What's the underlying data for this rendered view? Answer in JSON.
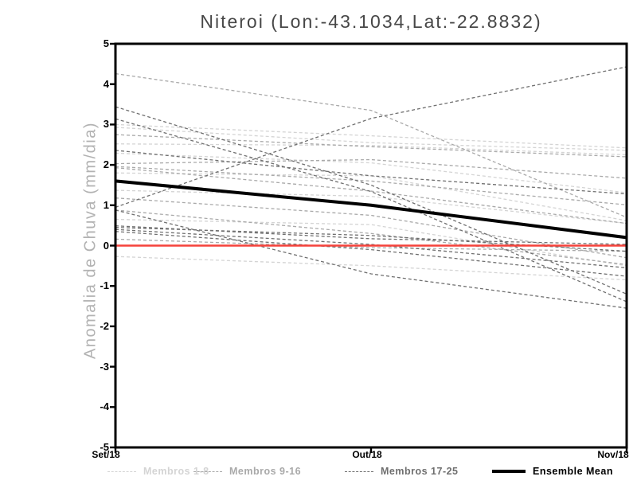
{
  "header": {
    "title": "Niteroi (Lon:-43.1034,Lat:-22.8832)"
  },
  "chart_data": {
    "type": "line",
    "title": "Niteroi (Lon:-43.1034,Lat:-22.8832)",
    "xlabel": "",
    "ylabel": "Anomalia de Chuva (mm/dia)",
    "categories": [
      "Set/18",
      "Out/18",
      "Nov/18"
    ],
    "ylim": [
      -5,
      5
    ],
    "yticks": [
      5,
      4,
      3,
      2,
      1,
      0,
      -1,
      -2,
      -3,
      -4,
      -5
    ],
    "grid": false,
    "legend_position": "bottom",
    "series_groups": [
      {
        "name": "Membros 1-8",
        "color": "#d4d4d4",
        "line_style": "dashed",
        "members": [
          [
            3.0,
            2.72,
            2.42
          ],
          [
            2.93,
            2.55,
            2.36
          ],
          [
            2.52,
            2.48,
            2.25
          ],
          [
            2.29,
            2.05,
            1.31
          ],
          [
            1.8,
            1.73,
            0.62
          ],
          [
            1.37,
            1.22,
            0.55
          ],
          [
            0.65,
            0.52,
            -0.5
          ],
          [
            -0.27,
            -0.5,
            -0.85
          ]
        ]
      },
      {
        "name": "Membros 9-16",
        "color": "#a9a9a9",
        "line_style": "dashed",
        "members": [
          [
            4.26,
            3.35,
            0.7
          ],
          [
            2.75,
            2.45,
            2.2
          ],
          [
            2.03,
            2.13,
            1.67
          ],
          [
            1.96,
            1.6,
            1.01
          ],
          [
            1.18,
            0.75,
            -0.3
          ],
          [
            0.88,
            0.3,
            -0.47
          ],
          [
            0.16,
            -0.05,
            -0.14
          ],
          [
            1.93,
            1.35,
            0.55
          ]
        ]
      },
      {
        "name": "Membros 17-25",
        "color": "#6f6f6f",
        "line_style": "dashed",
        "members": [
          [
            0.95,
            3.15,
            4.43
          ],
          [
            3.44,
            1.5,
            -1.2
          ],
          [
            3.14,
            1.34,
            -1.39
          ],
          [
            0.88,
            -0.7,
            -1.55
          ],
          [
            0.49,
            0.17,
            0.03
          ],
          [
            0.45,
            0.25,
            -0.14
          ],
          [
            0.4,
            0.03,
            -0.55
          ],
          [
            0.35,
            -0.1,
            -0.76
          ],
          [
            2.36,
            1.73,
            1.28
          ]
        ]
      }
    ],
    "ensemble_mean": {
      "name": "Ensemble Mean",
      "color": "#000000",
      "values": [
        1.6,
        1.0,
        0.2
      ]
    },
    "zero_line": {
      "color": "#f5423b",
      "value": 0
    }
  },
  "legend": {
    "items": [
      {
        "label": "Membros 1-8",
        "color": "#d4d4d4",
        "style": "dashed"
      },
      {
        "label": "Membros 9-16",
        "color": "#a9a9a9",
        "style": "dashed"
      },
      {
        "label": "Membros 17-25",
        "color": "#6f6f6f",
        "style": "dashed"
      },
      {
        "label": "Ensemble Mean",
        "color": "#000000",
        "style": "solid"
      }
    ]
  }
}
